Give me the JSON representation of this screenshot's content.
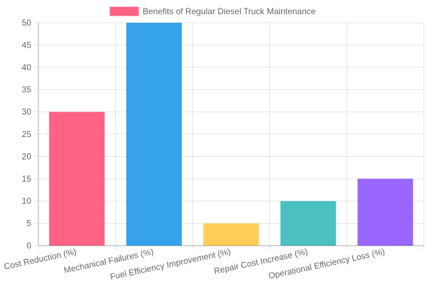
{
  "chart_data": {
    "type": "bar",
    "legend": {
      "label": "Benefits of Regular Diesel Truck Maintenance",
      "swatch_color": "#FF6384",
      "position": "top"
    },
    "categories": [
      "Cost Reduction (%)",
      "Mechanical Failures (%)",
      "Fuel Efficiency Improvement (%)",
      "Repair Cost Increase (%)",
      "Operational Efficiency Loss (%)"
    ],
    "series": [
      {
        "name": "Benefits of Regular Diesel Truck Maintenance",
        "values": [
          30,
          50,
          5,
          10,
          15
        ],
        "colors": [
          "#FF6384",
          "#36A2EB",
          "#FFCE56",
          "#4BC0C0",
          "#9966FF"
        ]
      }
    ],
    "ylim": [
      0,
      50
    ],
    "ytick_labels": [
      "0",
      "5",
      "10",
      "15",
      "20",
      "25",
      "30",
      "35",
      "40",
      "45",
      "50"
    ],
    "grid": true
  }
}
